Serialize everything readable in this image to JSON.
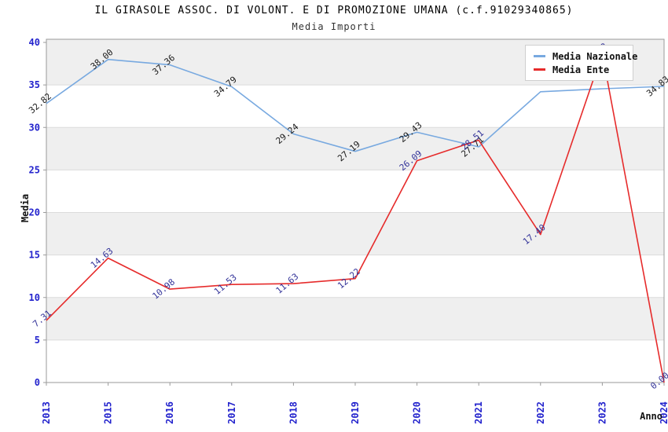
{
  "page": {
    "title": "IL GIRASOLE ASSOC. DI VOLONT. E DI PROMOZIONE UMANA (c.f.91029340865)",
    "subtitle": "Media Importi"
  },
  "chart_data": {
    "type": "line",
    "title": "IL GIRASOLE ASSOC. DI VOLONT. E DI PROMOZIONE UMANA (c.f.91029340865)",
    "subtitle": "Media Importi",
    "xlabel": "Anno",
    "ylabel": "Media",
    "ylim": [
      0,
      40
    ],
    "ytick_step": 5,
    "grid_bands": "alternating horizontal gray/white every 5 units",
    "legend_position": "top-right-inside",
    "categories": [
      "2013",
      "2015",
      "2016",
      "2017",
      "2018",
      "2019",
      "2020",
      "2021",
      "2022",
      "2023",
      "2024"
    ],
    "series": [
      {
        "name": "Media Nazionale",
        "color": "#78a9e0",
        "label_color": "#1a1a1a",
        "values": [
          32.82,
          38.0,
          37.36,
          34.79,
          29.24,
          27.19,
          29.43,
          27.71,
          34.2,
          34.55,
          34.83
        ],
        "point_labels": [
          "32.82",
          "38.00",
          "37.36",
          "34.79",
          "29.24",
          "27.19",
          "29.43",
          "27.71",
          "",
          "",
          "34.83"
        ],
        "note_hidden_labels": "2022 and 2023 labels hidden behind legend box"
      },
      {
        "name": "Media Ente",
        "color": "#e62b2b",
        "label_color": "#333399",
        "values": [
          7.31,
          14.63,
          10.98,
          11.53,
          11.63,
          12.22,
          26.09,
          28.51,
          17.4,
          38.72,
          0.0
        ],
        "point_labels": [
          "7.31",
          "14.63",
          "10.98",
          "11.53",
          "11.63",
          "12.22",
          "26.09",
          "28.51",
          "17.40",
          "38.72",
          "0.00"
        ]
      }
    ]
  },
  "colors": {
    "axis_tick_text": "#2323cd",
    "band_gray": "#efefef",
    "gridline": "#dcdcdc",
    "plot_border": "#9a9a9a",
    "background": "#ffffff"
  }
}
